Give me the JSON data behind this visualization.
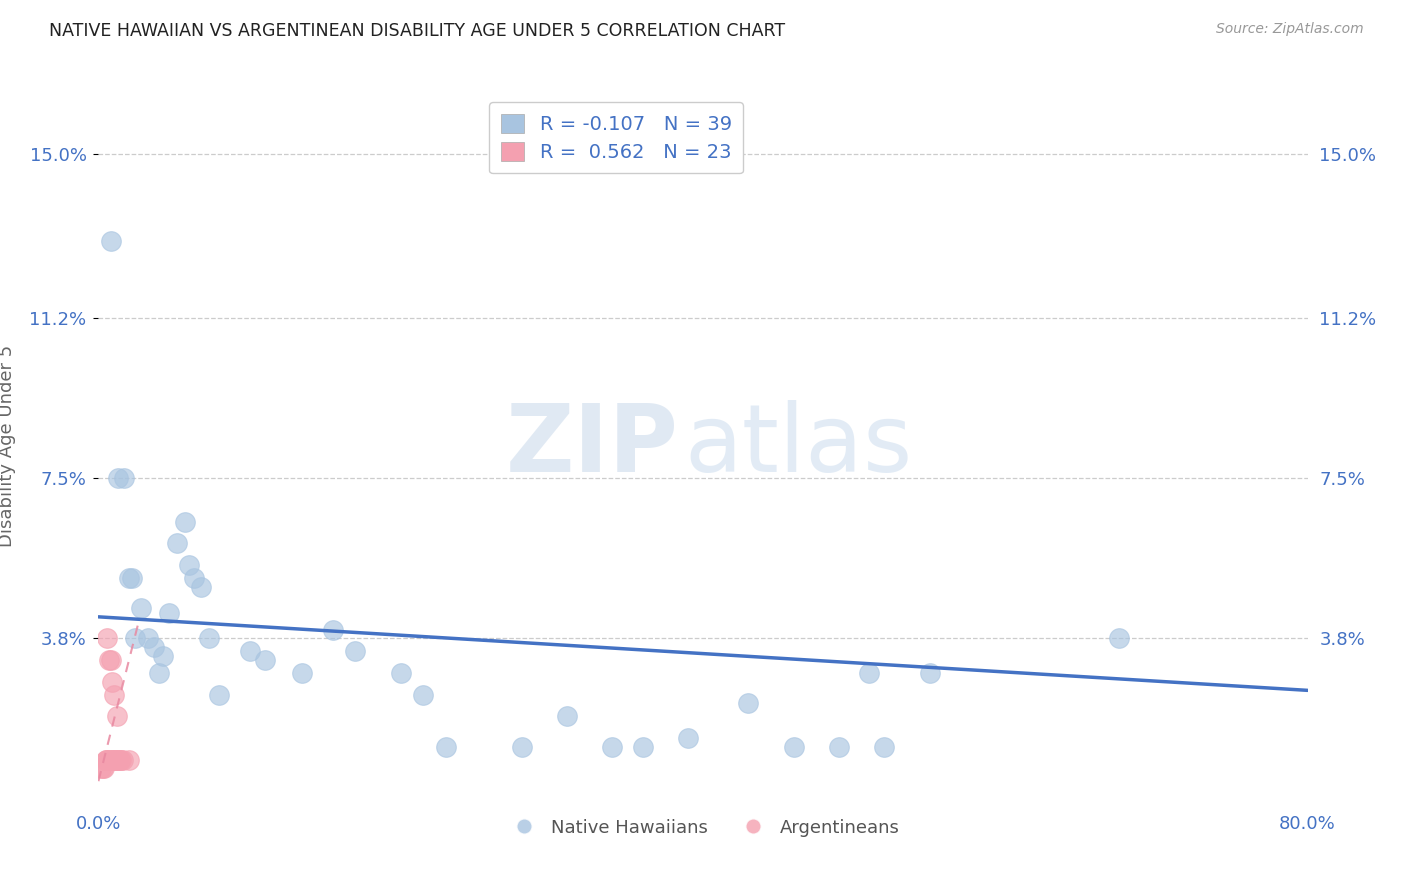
{
  "title": "NATIVE HAWAIIAN VS ARGENTINEAN DISABILITY AGE UNDER 5 CORRELATION CHART",
  "source": "Source: ZipAtlas.com",
  "ylabel": "Disability Age Under 5",
  "xlim": [
    0.0,
    0.8
  ],
  "ylim": [
    0.0,
    0.165
  ],
  "yticks": [
    0.038,
    0.075,
    0.112,
    0.15
  ],
  "ytick_labels": [
    "3.8%",
    "7.5%",
    "11.2%",
    "15.0%"
  ],
  "xtick_labels": [
    "0.0%",
    "",
    "",
    "",
    "80.0%"
  ],
  "xticks": [
    0.0,
    0.2,
    0.4,
    0.6,
    0.8
  ],
  "watermark_zip": "ZIP",
  "watermark_atlas": "atlas",
  "blue_color": "#a8c4e0",
  "pink_color": "#f4a0b0",
  "line_color": "#4472c4",
  "pink_line_color": "#e888a0",
  "legend_line1": "R = -0.107   N = 39",
  "legend_line2": "R =  0.562   N = 23",
  "blue_trend_x0": 0.0,
  "blue_trend_x1": 0.8,
  "blue_trend_y0": 0.043,
  "blue_trend_y1": 0.026,
  "pink_trend_x0": 0.0,
  "pink_trend_x1": 0.026,
  "pink_trend_y0": 0.005,
  "pink_trend_y1": 0.041,
  "nh_x": [
    0.008,
    0.013,
    0.017,
    0.02,
    0.022,
    0.024,
    0.028,
    0.033,
    0.037,
    0.04,
    0.043,
    0.047,
    0.052,
    0.057,
    0.06,
    0.063,
    0.068,
    0.073,
    0.08,
    0.1,
    0.11,
    0.135,
    0.155,
    0.17,
    0.2,
    0.215,
    0.23,
    0.28,
    0.31,
    0.34,
    0.36,
    0.39,
    0.43,
    0.46,
    0.49,
    0.51,
    0.52,
    0.55,
    0.675
  ],
  "nh_y": [
    0.13,
    0.075,
    0.075,
    0.052,
    0.052,
    0.038,
    0.045,
    0.038,
    0.036,
    0.03,
    0.034,
    0.044,
    0.06,
    0.065,
    0.055,
    0.052,
    0.05,
    0.038,
    0.025,
    0.035,
    0.033,
    0.03,
    0.04,
    0.035,
    0.03,
    0.025,
    0.013,
    0.013,
    0.02,
    0.013,
    0.013,
    0.015,
    0.023,
    0.013,
    0.013,
    0.03,
    0.013,
    0.03,
    0.038
  ],
  "arg_x": [
    0.002,
    0.003,
    0.004,
    0.005,
    0.005,
    0.006,
    0.006,
    0.007,
    0.007,
    0.008,
    0.008,
    0.009,
    0.009,
    0.01,
    0.01,
    0.011,
    0.012,
    0.012,
    0.013,
    0.014,
    0.015,
    0.016,
    0.02
  ],
  "arg_y": [
    0.008,
    0.008,
    0.008,
    0.01,
    0.01,
    0.01,
    0.038,
    0.01,
    0.033,
    0.01,
    0.033,
    0.01,
    0.028,
    0.01,
    0.025,
    0.01,
    0.01,
    0.02,
    0.01,
    0.01,
    0.01,
    0.01,
    0.01
  ]
}
